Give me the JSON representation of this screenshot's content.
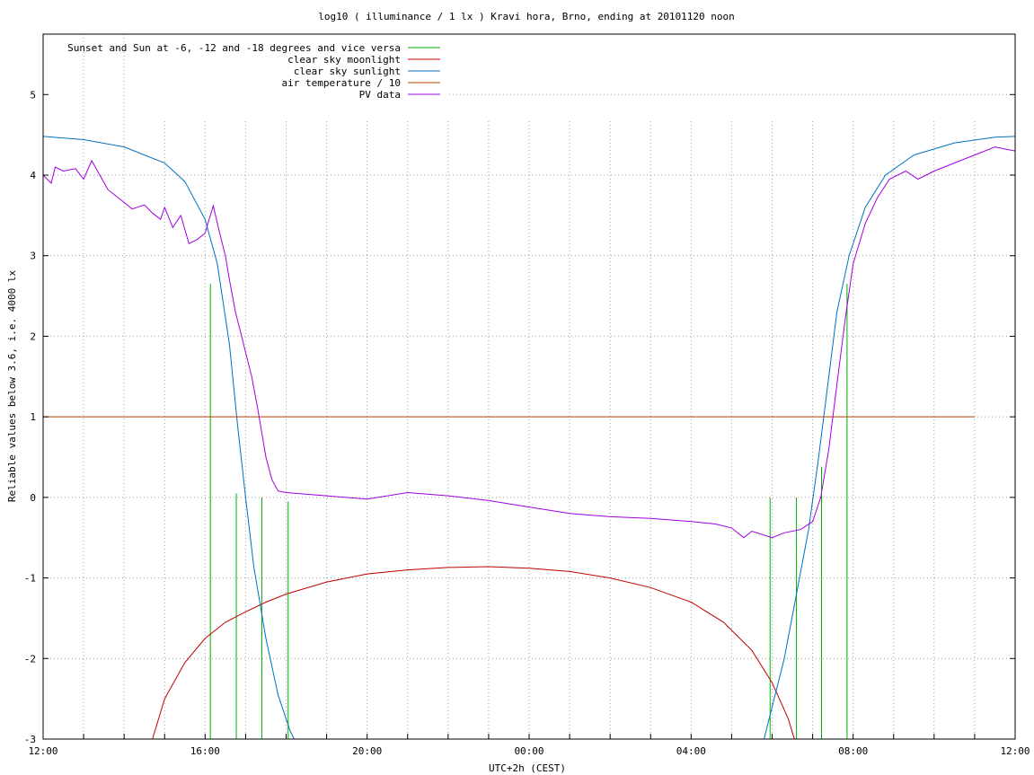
{
  "chart_data": {
    "type": "line",
    "title": "log10 ( illuminance / 1 lx ) Kravi hora, Brno, ending at 20101120 noon",
    "xlabel": "UTC+2h (CEST)",
    "ylabel": "Reliable values below 3.6, i.e. 4000 lx",
    "ylim": [
      -3,
      5.75
    ],
    "xlim": [
      0,
      24
    ],
    "x_unit": "hours after 12:00",
    "y_ticks": [
      "-3",
      "-2",
      "-1",
      "0",
      "1",
      "2",
      "3",
      "4",
      "5"
    ],
    "x_ticks": [
      {
        "x": 0,
        "label": "12:00"
      },
      {
        "x": 4,
        "label": "16:00"
      },
      {
        "x": 8,
        "label": "20:00"
      },
      {
        "x": 12,
        "label": "00:00"
      },
      {
        "x": 16,
        "label": "04:00"
      },
      {
        "x": 20,
        "label": "08:00"
      },
      {
        "x": 24,
        "label": "12:00"
      }
    ],
    "grid": true,
    "legend_position": "top-left",
    "series": [
      {
        "name": "Sunset and Sun at -6, -12 and -18 degrees and vice versa",
        "color": "#00b000",
        "kind": "vertical-markers",
        "markers": [
          {
            "x": 4.13,
            "y_top": 2.65
          },
          {
            "x": 4.77,
            "y_top": 0.05
          },
          {
            "x": 5.4,
            "y_top": 0.0
          },
          {
            "x": 6.05,
            "y_top": -0.05
          },
          {
            "x": 17.95,
            "y_top": 0.0
          },
          {
            "x": 18.6,
            "y_top": 0.0
          },
          {
            "x": 19.22,
            "y_top": 0.38
          },
          {
            "x": 19.85,
            "y_top": 2.65
          }
        ]
      },
      {
        "name": "clear sky moonlight",
        "color": "#c00000",
        "points": [
          [
            2.7,
            -3.0
          ],
          [
            3.0,
            -2.5
          ],
          [
            3.5,
            -2.05
          ],
          [
            4.0,
            -1.75
          ],
          [
            4.5,
            -1.55
          ],
          [
            5.0,
            -1.42
          ],
          [
            5.5,
            -1.3
          ],
          [
            6.0,
            -1.2
          ],
          [
            7.0,
            -1.05
          ],
          [
            8.0,
            -0.95
          ],
          [
            9.0,
            -0.9
          ],
          [
            10.0,
            -0.87
          ],
          [
            11.0,
            -0.86
          ],
          [
            12.0,
            -0.88
          ],
          [
            13.0,
            -0.92
          ],
          [
            14.0,
            -1.0
          ],
          [
            15.0,
            -1.12
          ],
          [
            16.0,
            -1.3
          ],
          [
            16.8,
            -1.55
          ],
          [
            17.5,
            -1.9
          ],
          [
            18.0,
            -2.3
          ],
          [
            18.4,
            -2.75
          ],
          [
            18.55,
            -3.0
          ]
        ]
      },
      {
        "name": "clear sky sunlight",
        "color": "#0070c0",
        "points": [
          [
            0.0,
            4.48
          ],
          [
            1.0,
            4.44
          ],
          [
            2.0,
            4.35
          ],
          [
            3.0,
            4.15
          ],
          [
            3.5,
            3.92
          ],
          [
            4.0,
            3.45
          ],
          [
            4.3,
            2.9
          ],
          [
            4.6,
            1.9
          ],
          [
            4.8,
            0.9
          ],
          [
            5.0,
            0.0
          ],
          [
            5.2,
            -0.85
          ],
          [
            5.5,
            -1.75
          ],
          [
            5.8,
            -2.45
          ],
          [
            6.1,
            -2.9
          ],
          [
            6.2,
            -3.0
          ]
        ],
        "points_b": [
          [
            17.8,
            -3.0
          ],
          [
            18.0,
            -2.6
          ],
          [
            18.3,
            -2.0
          ],
          [
            18.6,
            -1.2
          ],
          [
            18.9,
            -0.4
          ],
          [
            19.15,
            0.5
          ],
          [
            19.4,
            1.5
          ],
          [
            19.6,
            2.3
          ],
          [
            19.9,
            3.0
          ],
          [
            20.3,
            3.6
          ],
          [
            20.8,
            4.0
          ],
          [
            21.5,
            4.25
          ],
          [
            22.5,
            4.4
          ],
          [
            23.5,
            4.47
          ],
          [
            24.0,
            4.48
          ]
        ]
      },
      {
        "name": "air temperature / 10",
        "color": "#c04000",
        "points": [
          [
            0.0,
            1.0
          ],
          [
            23.0,
            1.0
          ]
        ]
      },
      {
        "name": "PV data",
        "color": "#a000e0",
        "points": [
          [
            0.0,
            4.0
          ],
          [
            0.2,
            3.9
          ],
          [
            0.3,
            4.1
          ],
          [
            0.5,
            4.05
          ],
          [
            0.8,
            4.08
          ],
          [
            1.0,
            3.95
          ],
          [
            1.2,
            4.18
          ],
          [
            1.4,
            4.0
          ],
          [
            1.6,
            3.82
          ],
          [
            1.9,
            3.7
          ],
          [
            2.2,
            3.58
          ],
          [
            2.5,
            3.63
          ],
          [
            2.7,
            3.53
          ],
          [
            2.9,
            3.45
          ],
          [
            3.0,
            3.6
          ],
          [
            3.2,
            3.35
          ],
          [
            3.4,
            3.5
          ],
          [
            3.6,
            3.15
          ],
          [
            3.8,
            3.2
          ],
          [
            4.0,
            3.28
          ],
          [
            4.1,
            3.45
          ],
          [
            4.2,
            3.62
          ],
          [
            4.35,
            3.3
          ],
          [
            4.5,
            3.0
          ],
          [
            4.6,
            2.7
          ],
          [
            4.75,
            2.3
          ],
          [
            4.85,
            2.1
          ],
          [
            5.0,
            1.8
          ],
          [
            5.15,
            1.5
          ],
          [
            5.3,
            1.1
          ],
          [
            5.5,
            0.5
          ],
          [
            5.65,
            0.22
          ],
          [
            5.8,
            0.08
          ],
          [
            6.0,
            0.06
          ],
          [
            7.0,
            0.02
          ],
          [
            8.0,
            -0.02
          ],
          [
            9.0,
            0.06
          ],
          [
            10.0,
            0.02
          ],
          [
            11.0,
            -0.04
          ],
          [
            12.0,
            -0.12
          ],
          [
            13.0,
            -0.2
          ],
          [
            14.0,
            -0.24
          ],
          [
            15.0,
            -0.26
          ],
          [
            16.0,
            -0.3
          ],
          [
            16.6,
            -0.33
          ],
          [
            17.0,
            -0.38
          ],
          [
            17.3,
            -0.5
          ],
          [
            17.5,
            -0.42
          ],
          [
            18.0,
            -0.5
          ],
          [
            18.3,
            -0.44
          ],
          [
            18.7,
            -0.4
          ],
          [
            19.0,
            -0.3
          ],
          [
            19.2,
            0.0
          ],
          [
            19.4,
            0.6
          ],
          [
            19.6,
            1.4
          ],
          [
            19.8,
            2.2
          ],
          [
            20.0,
            2.9
          ],
          [
            20.3,
            3.4
          ],
          [
            20.6,
            3.72
          ],
          [
            20.9,
            3.95
          ],
          [
            21.3,
            4.05
          ],
          [
            21.6,
            3.95
          ],
          [
            22.0,
            4.05
          ],
          [
            22.5,
            4.15
          ],
          [
            23.0,
            4.25
          ],
          [
            23.5,
            4.35
          ],
          [
            24.0,
            4.3
          ]
        ]
      }
    ]
  }
}
